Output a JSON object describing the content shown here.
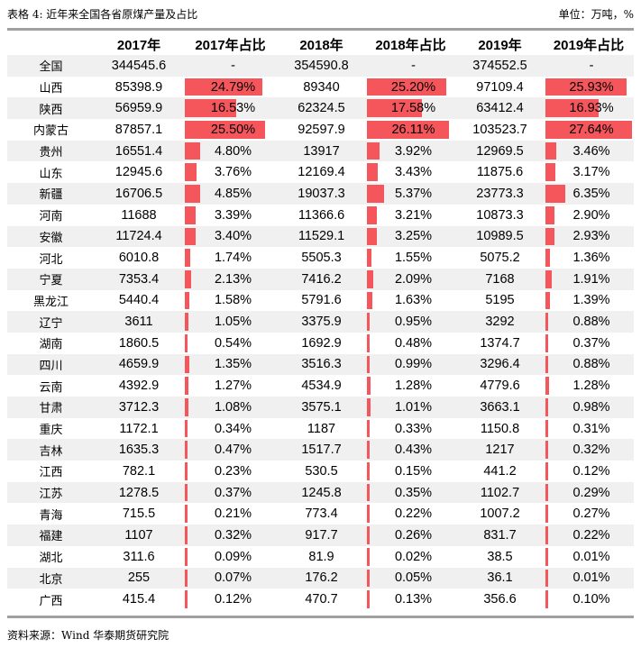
{
  "caption": {
    "title": "表格 4:   近年来全国各省原煤产量及占比",
    "unit": "单位：万吨，%"
  },
  "headers": [
    "",
    "2017年",
    "2017年占比",
    "2018年",
    "2018年占比",
    "2019年",
    "2019年占比"
  ],
  "rows": [
    {
      "province": "全国",
      "v2017": "344545.6",
      "s2017": "-",
      "v2018": "354590.8",
      "s2018": "-",
      "v2019": "374552.5",
      "s2019": "-",
      "p2017": 0,
      "p2018": 0,
      "p2019": 0
    },
    {
      "province": "山西",
      "v2017": "85398.9",
      "s2017": "24.79%",
      "v2018": "89340",
      "s2018": "25.20%",
      "v2019": "97109.4",
      "s2019": "25.93%",
      "p2017": 24.79,
      "p2018": 25.2,
      "p2019": 25.93
    },
    {
      "province": "陕西",
      "v2017": "56959.9",
      "s2017": "16.53%",
      "v2018": "62324.5",
      "s2018": "17.58%",
      "v2019": "63412.4",
      "s2019": "16.93%",
      "p2017": 16.53,
      "p2018": 17.58,
      "p2019": 16.93
    },
    {
      "province": "内蒙古",
      "v2017": "87857.1",
      "s2017": "25.50%",
      "v2018": "92597.9",
      "s2018": "26.11%",
      "v2019": "103523.7",
      "s2019": "27.64%",
      "p2017": 25.5,
      "p2018": 26.11,
      "p2019": 27.64
    },
    {
      "province": "贵州",
      "v2017": "16551.4",
      "s2017": "4.80%",
      "v2018": "13917",
      "s2018": "3.92%",
      "v2019": "12969.5",
      "s2019": "3.46%",
      "p2017": 4.8,
      "p2018": 3.92,
      "p2019": 3.46
    },
    {
      "province": "山东",
      "v2017": "12945.6",
      "s2017": "3.76%",
      "v2018": "12169.4",
      "s2018": "3.43%",
      "v2019": "11875.6",
      "s2019": "3.17%",
      "p2017": 3.76,
      "p2018": 3.43,
      "p2019": 3.17
    },
    {
      "province": "新疆",
      "v2017": "16706.5",
      "s2017": "4.85%",
      "v2018": "19037.3",
      "s2018": "5.37%",
      "v2019": "23773.3",
      "s2019": "6.35%",
      "p2017": 4.85,
      "p2018": 5.37,
      "p2019": 6.35
    },
    {
      "province": "河南",
      "v2017": "11688",
      "s2017": "3.39%",
      "v2018": "11366.6",
      "s2018": "3.21%",
      "v2019": "10873.3",
      "s2019": "2.90%",
      "p2017": 3.39,
      "p2018": 3.21,
      "p2019": 2.9
    },
    {
      "province": "安徽",
      "v2017": "11724.4",
      "s2017": "3.40%",
      "v2018": "11529.1",
      "s2018": "3.25%",
      "v2019": "10989.5",
      "s2019": "2.93%",
      "p2017": 3.4,
      "p2018": 3.25,
      "p2019": 2.93
    },
    {
      "province": "河北",
      "v2017": "6010.8",
      "s2017": "1.74%",
      "v2018": "5505.3",
      "s2018": "1.55%",
      "v2019": "5075.2",
      "s2019": "1.36%",
      "p2017": 1.74,
      "p2018": 1.55,
      "p2019": 1.36
    },
    {
      "province": "宁夏",
      "v2017": "7353.4",
      "s2017": "2.13%",
      "v2018": "7416.2",
      "s2018": "2.09%",
      "v2019": "7168",
      "s2019": "1.91%",
      "p2017": 2.13,
      "p2018": 2.09,
      "p2019": 1.91
    },
    {
      "province": "黑龙江",
      "v2017": "5440.4",
      "s2017": "1.58%",
      "v2018": "5791.6",
      "s2018": "1.63%",
      "v2019": "5195",
      "s2019": "1.39%",
      "p2017": 1.58,
      "p2018": 1.63,
      "p2019": 1.39
    },
    {
      "province": "辽宁",
      "v2017": "3611",
      "s2017": "1.05%",
      "v2018": "3375.9",
      "s2018": "0.95%",
      "v2019": "3292",
      "s2019": "0.88%",
      "p2017": 1.05,
      "p2018": 0.95,
      "p2019": 0.88
    },
    {
      "province": "湖南",
      "v2017": "1860.5",
      "s2017": "0.54%",
      "v2018": "1692.9",
      "s2018": "0.48%",
      "v2019": "1374.7",
      "s2019": "0.37%",
      "p2017": 0.54,
      "p2018": 0.48,
      "p2019": 0.37
    },
    {
      "province": "四川",
      "v2017": "4659.9",
      "s2017": "1.35%",
      "v2018": "3516.3",
      "s2018": "0.99%",
      "v2019": "3296.4",
      "s2019": "0.88%",
      "p2017": 1.35,
      "p2018": 0.99,
      "p2019": 0.88
    },
    {
      "province": "云南",
      "v2017": "4392.9",
      "s2017": "1.27%",
      "v2018": "4534.9",
      "s2018": "1.28%",
      "v2019": "4779.6",
      "s2019": "1.28%",
      "p2017": 1.27,
      "p2018": 1.28,
      "p2019": 1.28
    },
    {
      "province": "甘肃",
      "v2017": "3712.3",
      "s2017": "1.08%",
      "v2018": "3575.1",
      "s2018": "1.01%",
      "v2019": "3663.1",
      "s2019": "0.98%",
      "p2017": 1.08,
      "p2018": 1.01,
      "p2019": 0.98
    },
    {
      "province": "重庆",
      "v2017": "1172.1",
      "s2017": "0.34%",
      "v2018": "1187",
      "s2018": "0.33%",
      "v2019": "1150.8",
      "s2019": "0.31%",
      "p2017": 0.34,
      "p2018": 0.33,
      "p2019": 0.31
    },
    {
      "province": "吉林",
      "v2017": "1635.3",
      "s2017": "0.47%",
      "v2018": "1517.7",
      "s2018": "0.43%",
      "v2019": "1217",
      "s2019": "0.32%",
      "p2017": 0.47,
      "p2018": 0.43,
      "p2019": 0.32
    },
    {
      "province": "江西",
      "v2017": "782.1",
      "s2017": "0.23%",
      "v2018": "530.5",
      "s2018": "0.15%",
      "v2019": "441.2",
      "s2019": "0.12%",
      "p2017": 0.23,
      "p2018": 0.15,
      "p2019": 0.12
    },
    {
      "province": "江苏",
      "v2017": "1278.5",
      "s2017": "0.37%",
      "v2018": "1245.8",
      "s2018": "0.35%",
      "v2019": "1102.7",
      "s2019": "0.29%",
      "p2017": 0.37,
      "p2018": 0.35,
      "p2019": 0.29
    },
    {
      "province": "青海",
      "v2017": "715.5",
      "s2017": "0.21%",
      "v2018": "773.4",
      "s2018": "0.22%",
      "v2019": "1007.2",
      "s2019": "0.27%",
      "p2017": 0.21,
      "p2018": 0.22,
      "p2019": 0.27
    },
    {
      "province": "福建",
      "v2017": "1107",
      "s2017": "0.32%",
      "v2018": "917.7",
      "s2018": "0.26%",
      "v2019": "831.7",
      "s2019": "0.22%",
      "p2017": 0.32,
      "p2018": 0.26,
      "p2019": 0.22
    },
    {
      "province": "湖北",
      "v2017": "311.6",
      "s2017": "0.09%",
      "v2018": "81.9",
      "s2018": "0.02%",
      "v2019": "38.5",
      "s2019": "0.01%",
      "p2017": 0.09,
      "p2018": 0.02,
      "p2019": 0.01
    },
    {
      "province": "北京",
      "v2017": "255",
      "s2017": "0.07%",
      "v2018": "176.2",
      "s2018": "0.05%",
      "v2019": "36.1",
      "s2019": "0.01%",
      "p2017": 0.07,
      "p2018": 0.05,
      "p2019": 0.01
    },
    {
      "province": "广西",
      "v2017": "415.4",
      "s2017": "0.12%",
      "v2018": "470.7",
      "s2018": "0.13%",
      "v2019": "356.6",
      "s2019": "0.10%",
      "p2017": 0.12,
      "p2018": 0.13,
      "p2019": 0.1
    }
  ],
  "bar_color": "#f5565c",
  "source": "资料来源：Wind  华泰期货研究院"
}
